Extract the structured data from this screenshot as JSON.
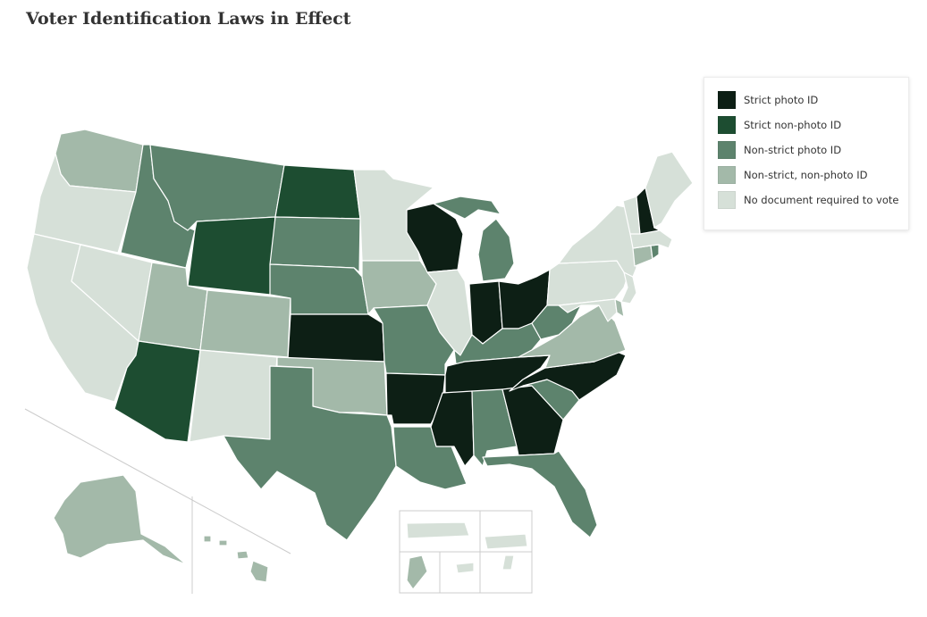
{
  "title": "Voter Identification Laws in Effect",
  "colors": {
    "strict_photo": "#0d1f15",
    "strict_nonphoto": "#1d4d31",
    "nonstrict_photo": "#5d836d",
    "nonstrict_nonphoto": "#a3b9a9",
    "none": "#d6e0d8",
    "frame": "#cccccc"
  },
  "legend": [
    {
      "key": "strict_photo",
      "label": "Strict photo ID"
    },
    {
      "key": "strict_nonphoto",
      "label": "Strict non-photo ID"
    },
    {
      "key": "nonstrict_photo",
      "label": "Non-strict photo ID"
    },
    {
      "key": "nonstrict_nonphoto",
      "label": "Non-strict, non-photo ID"
    },
    {
      "key": "none",
      "label": "No document required to vote"
    }
  ],
  "states": {
    "WA": "nonstrict_nonphoto",
    "OR": "none",
    "CA": "none",
    "NV": "none",
    "ID": "nonstrict_photo",
    "MT": "nonstrict_photo",
    "WY": "strict_nonphoto",
    "UT": "nonstrict_nonphoto",
    "CO": "nonstrict_nonphoto",
    "AZ": "strict_nonphoto",
    "NM": "none",
    "ND": "strict_nonphoto",
    "SD": "nonstrict_photo",
    "NE": "nonstrict_photo",
    "KS": "strict_photo",
    "OK": "nonstrict_nonphoto",
    "TX": "nonstrict_photo",
    "MN": "none",
    "IA": "nonstrict_nonphoto",
    "MO": "nonstrict_photo",
    "AR": "strict_photo",
    "LA": "nonstrict_photo",
    "WI": "strict_photo",
    "IL": "none",
    "MI": "nonstrict_photo",
    "IN": "strict_photo",
    "OH": "strict_photo",
    "KY": "nonstrict_photo",
    "TN": "strict_photo",
    "MS": "strict_photo",
    "AL": "nonstrict_photo",
    "GA": "strict_photo",
    "FL": "nonstrict_photo",
    "SC": "nonstrict_photo",
    "NC": "strict_photo",
    "VA": "nonstrict_nonphoto",
    "WV": "nonstrict_photo",
    "PA": "none",
    "NY": "none",
    "VT": "none",
    "NH": "strict_photo",
    "ME": "none",
    "MA": "none",
    "CT": "nonstrict_nonphoto",
    "RI": "nonstrict_photo",
    "NJ": "none",
    "DE": "nonstrict_nonphoto",
    "MD": "none",
    "DC": "none",
    "AK": "nonstrict_nonphoto",
    "HI": "nonstrict_nonphoto",
    "PR": "none",
    "VI": "none",
    "GU": "nonstrict_nonphoto",
    "AS": "none",
    "MP": "none"
  }
}
